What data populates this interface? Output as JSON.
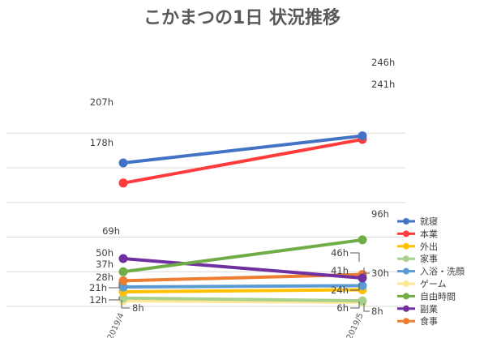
{
  "chart_data": {
    "type": "line",
    "title": "こかまつの1日 状況推移",
    "categories": [
      "2019/4",
      "2019/5"
    ],
    "ylim": [
      0,
      280
    ],
    "grid": true,
    "legend": "right",
    "value_suffix": "h",
    "series": [
      {
        "name": "就寝",
        "values": [
          207,
          246
        ],
        "color": "#4472C4"
      },
      {
        "name": "本業",
        "values": [
          178,
          241
        ],
        "color": "#FF3B3B"
      },
      {
        "name": "外出",
        "values": [
          21,
          24
        ],
        "color": "#FFC000"
      },
      {
        "name": "家事",
        "values": [
          12,
          8
        ],
        "color": "#A9D18E"
      },
      {
        "name": "入浴・洗顔",
        "values": [
          28,
          30
        ],
        "color": "#5B9BD5"
      },
      {
        "name": "ゲーム",
        "values": [
          8,
          6
        ],
        "color": "#FFE699"
      },
      {
        "name": "自由時間",
        "values": [
          50,
          96
        ],
        "color": "#70AD47"
      },
      {
        "name": "副業",
        "values": [
          69,
          41
        ],
        "color": "#7030A0"
      },
      {
        "name": "食事",
        "values": [
          37,
          46
        ],
        "color": "#ED7D31"
      }
    ]
  }
}
